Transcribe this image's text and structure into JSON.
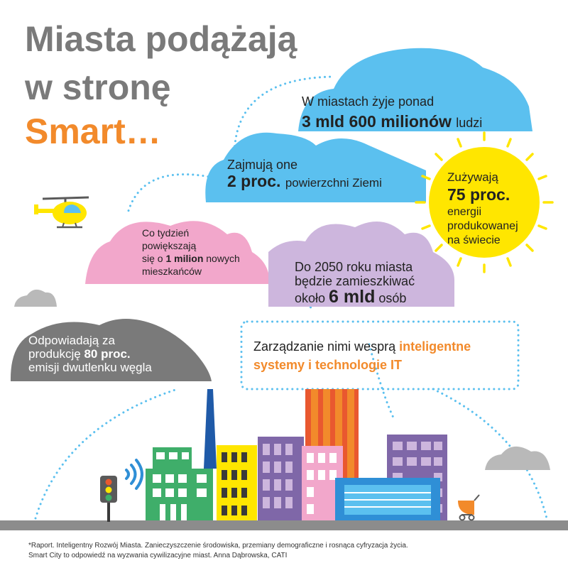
{
  "title": {
    "line1": "Miasta podążają",
    "line2": "w stronę",
    "line3": "Smart…"
  },
  "facts": {
    "population": {
      "pre": "W miastach żyje ponad",
      "big": "3 mld 600 milionów",
      "post": "ludzi"
    },
    "area": {
      "pre": "Zajmują one",
      "big": "2 proc.",
      "post": "powierzchni Ziemi"
    },
    "energy": {
      "pre": "Zużywają",
      "big": "75 proc.",
      "l3": "energii",
      "l4": "produkowanej",
      "l5": "na świecie"
    },
    "growth": {
      "l1": "Co tydzień",
      "l2": "powiększają",
      "l3a": "się o",
      "l3b": "1 milion",
      "l3c": "nowych",
      "l4": "mieszkańców"
    },
    "future": {
      "l1": "Do 2050 roku miasta",
      "l2": "będzie zamieszkiwać",
      "l3a": "około",
      "l3b": "6 mld",
      "l3c": "osób"
    },
    "emissions": {
      "l1": "Odpowiadają za",
      "l2a": "produkcję",
      "l2b": "80 proc.",
      "l3": "emisji dwutlenku węgla"
    }
  },
  "management": {
    "l1a": "Zarządzanie nimi wesprą",
    "l1b": "inteligentne",
    "l2": "systemy i technologie IT"
  },
  "footer": {
    "line1": "*Raport. Inteligentny Rozwój Miasta. Zanieczyszczenie środowiska, przemiany demograficzne i rosnąca cyfryzacja życia.",
    "line2": "Smart City to odpowiedź na wyzwania cywilizacyjne miast. Anna Dąbrowska, CATI"
  },
  "colors": {
    "title_gray": "#7a7a7a",
    "accent_orange": "#f28a2b",
    "cloud_blue": "#5bc0ef",
    "cloud_pink": "#f2a7cb",
    "cloud_lilac": "#cdb6dd",
    "cloud_dark": "#7a7a7a",
    "cloud_light": "#b9b9b9",
    "sun_yellow": "#ffe600",
    "dots_blue": "#5bc0ef",
    "ground_gray": "#8c8c8c"
  },
  "icons": [
    "helicopter-icon",
    "sun-icon",
    "traffic-light-icon",
    "wifi-signal-icon",
    "baby-stroller-icon"
  ]
}
